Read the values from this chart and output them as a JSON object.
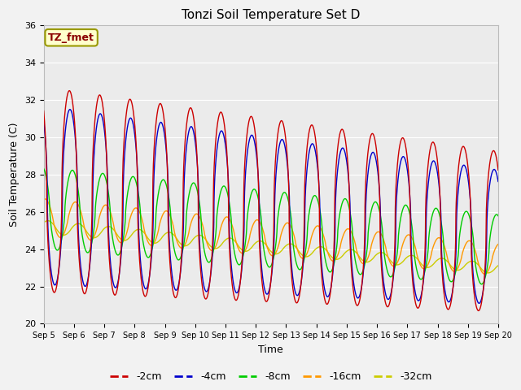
{
  "title": "Tonzi Soil Temperature Set D",
  "xlabel": "Time",
  "ylabel": "Soil Temperature (C)",
  "ylim": [
    20,
    36
  ],
  "xtick_labels": [
    "Sep 5",
    "Sep 6",
    "Sep 7",
    "Sep 8",
    "Sep 9",
    "Sep 10",
    "Sep 11",
    "Sep 12",
    "Sep 13",
    "Sep 14",
    "Sep 15",
    "Sep 16",
    "Sep 17",
    "Sep 18",
    "Sep 19",
    "Sep 20"
  ],
  "ytick_values": [
    20,
    22,
    24,
    26,
    28,
    30,
    32,
    34,
    36
  ],
  "legend_labels": [
    "-2cm",
    "-4cm",
    "-8cm",
    "-16cm",
    "-32cm"
  ],
  "legend_colors": [
    "#cc0000",
    "#0000cc",
    "#00cc00",
    "#ff9900",
    "#cccc00"
  ],
  "annotation_text": "TZ_fmet",
  "title_fontsize": 11,
  "bg_color": "#ebebeb"
}
